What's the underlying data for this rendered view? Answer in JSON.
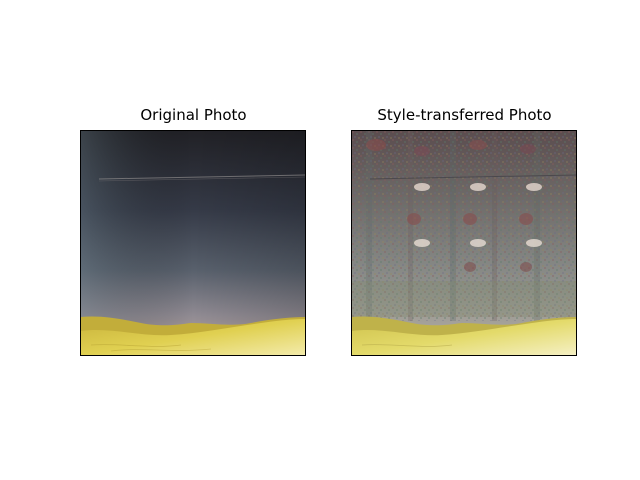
{
  "figure": {
    "panels": [
      {
        "title": "Original Photo",
        "image": "night-desert-photo"
      },
      {
        "title": "Style-transferred Photo",
        "image": "style-transferred-desert-photo"
      }
    ],
    "colors": {
      "sky_top": "#232328",
      "sky_mid": "#4a5566",
      "horizon_glow": "#b7a4a0",
      "dune_yellow": "#e2d24a",
      "dune_light": "#f1eaa4",
      "grid_noise": "#7c7670"
    }
  }
}
